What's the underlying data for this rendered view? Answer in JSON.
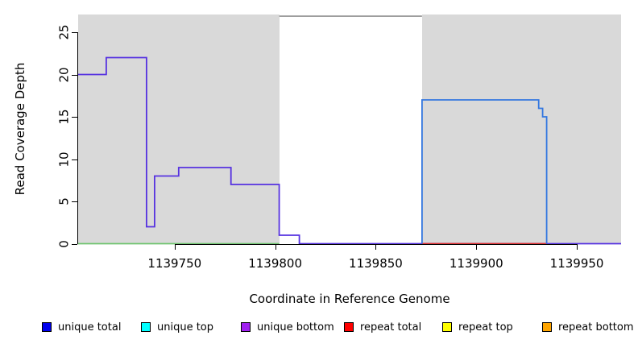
{
  "figure": {
    "y_axis": {
      "label": "Read Coverage Depth",
      "ticks": [
        0,
        5,
        10,
        15,
        20,
        25
      ]
    },
    "x_axis": {
      "label": "Coordinate in Reference Genome",
      "ticks": [
        1139750,
        1139800,
        1139850,
        1139900,
        1139950
      ]
    },
    "legend": [
      {
        "label": "unique total",
        "color": "#0000EE"
      },
      {
        "label": "unique top",
        "color": "#00FFFF"
      },
      {
        "label": "unique bottom",
        "color": "#A020F0"
      },
      {
        "label": "repeat total",
        "color": "#FF0000"
      },
      {
        "label": "repeat top",
        "color": "#FFFF00"
      },
      {
        "label": "repeat bottom",
        "color": "#FFA500"
      }
    ],
    "colors": {
      "shade": "#D9D9D9",
      "clip_line": "#909090",
      "unique_bottom_line": "#5632E0",
      "unique_top_line": "#3377E0",
      "zero_green_line": "#6FC46F",
      "zero_red_line": "#E03030"
    }
  },
  "chart_data": {
    "type": "line",
    "subtype": "step-coverage",
    "title": "",
    "xlabel": "Coordinate in Reference Genome",
    "ylabel": "Read Coverage Depth",
    "x_range": [
      1139702,
      1139972
    ],
    "y_range": [
      0,
      27.1
    ],
    "x_ticks": [
      1139750,
      1139800,
      1139850,
      1139900,
      1139950
    ],
    "y_ticks": [
      0,
      5,
      10,
      15,
      20,
      25
    ],
    "grid": false,
    "legend_position": "bottom",
    "shaded_regions": [
      {
        "from": 1139702,
        "to": 1139802
      },
      {
        "from": 1139873,
        "to": 1139972
      }
    ],
    "clip_line": {
      "value": 26.9,
      "from": 1139802,
      "to": 1139873
    },
    "series": [
      {
        "name": "unique bottom",
        "rendered_color": "#5632E0",
        "steps": [
          [
            1139702,
            1139716,
            20
          ],
          [
            1139716,
            1139736,
            22
          ],
          [
            1139736,
            1139740,
            2
          ],
          [
            1139740,
            1139752,
            8
          ],
          [
            1139752,
            1139778,
            9
          ],
          [
            1139778,
            1139802,
            7
          ],
          [
            1139802,
            1139812,
            1
          ],
          [
            1139812,
            1139972,
            0
          ]
        ]
      },
      {
        "name": "zero overlap (top/repeat, left region)",
        "rendered_color": "#6FC46F",
        "steps": [
          [
            1139702,
            1139802,
            0
          ]
        ]
      },
      {
        "name": "repeat total",
        "rendered_color": "#E03030",
        "steps": [
          [
            1139873,
            1139935,
            0
          ]
        ]
      },
      {
        "name": "unique top",
        "rendered_color": "#3377E0",
        "steps": [
          [
            1139873,
            1139931,
            17
          ],
          [
            1139931,
            1139933,
            16
          ],
          [
            1139933,
            1139935,
            15
          ]
        ]
      }
    ]
  }
}
